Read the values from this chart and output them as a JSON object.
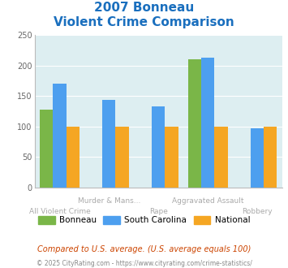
{
  "title_line1": "2007 Bonneau",
  "title_line2": "Violent Crime Comparison",
  "x_labels_upper": [
    "",
    "Murder & Mans...",
    "",
    "Aggravated Assault",
    ""
  ],
  "x_labels_lower": [
    "All Violent Crime",
    "",
    "Rape",
    "",
    "Robbery"
  ],
  "bonneau": [
    128,
    0,
    0,
    210,
    0
  ],
  "south_carolina": [
    170,
    144,
    133,
    212,
    97
  ],
  "national": [
    100,
    100,
    100,
    100,
    100
  ],
  "color_bonneau": "#7ab648",
  "color_sc": "#4d9fef",
  "color_national": "#f5a623",
  "ylim": [
    0,
    250
  ],
  "yticks": [
    0,
    50,
    100,
    150,
    200,
    250
  ],
  "legend_labels": [
    "Bonneau",
    "South Carolina",
    "National"
  ],
  "footnote1": "Compared to U.S. average. (U.S. average equals 100)",
  "footnote2": "© 2025 CityRating.com - https://www.cityrating.com/crime-statistics/",
  "bg_color": "#ddeef1",
  "title_color": "#1a6fbe",
  "label_color": "#aaaaaa",
  "footnote1_color": "#cc4400",
  "footnote2_color": "#888888",
  "grid_color": "#ffffff"
}
